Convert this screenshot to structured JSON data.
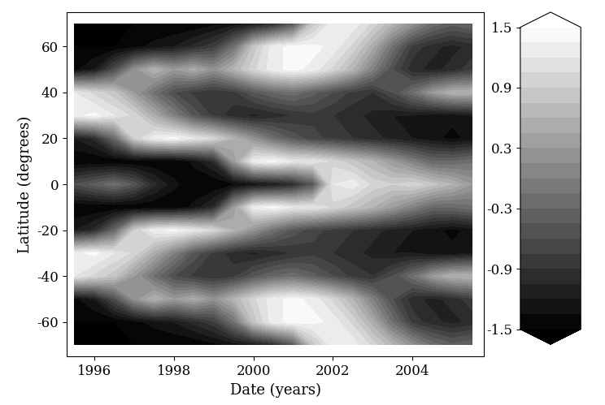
{
  "chart_data": {
    "type": "heatmap",
    "xlabel": "Date (years)",
    "ylabel": "Latitude (degrees)",
    "x": [
      1995.5,
      1996.0,
      1996.5,
      1997.0,
      1997.5,
      1998.0,
      1998.5,
      1999.0,
      1999.5,
      2000.0,
      2000.5,
      2001.0,
      2001.5,
      2002.0,
      2002.5,
      2003.0,
      2003.5,
      2004.0,
      2004.5,
      2005.0,
      2005.5
    ],
    "y": [
      -70,
      -60,
      -50,
      -40,
      -30,
      -20,
      -10,
      0,
      10,
      20,
      30,
      40,
      50,
      60,
      70
    ],
    "cells": [
      [
        -1.5,
        -1.5,
        -1.5,
        -1.5,
        -1.5,
        -1.5,
        -1.5,
        -1.4,
        -1.3,
        -1.2,
        -1.0,
        -0.5,
        0.8,
        1.3,
        1.3,
        1.0,
        0.6,
        0.2,
        -0.2,
        -0.4,
        -0.3
      ],
      [
        -1.5,
        -1.5,
        -1.5,
        -1.4,
        -1.3,
        -1.2,
        -1.0,
        -0.8,
        -0.2,
        0.8,
        1.3,
        1.4,
        1.4,
        1.3,
        1.0,
        0.5,
        -0.2,
        -0.8,
        -1.0,
        -1.1,
        -1.0
      ],
      [
        -1.4,
        -1.2,
        -0.6,
        0.2,
        0.6,
        0.3,
        0.5,
        0.2,
        0.6,
        1.0,
        1.3,
        1.4,
        1.3,
        1.0,
        0.6,
        0.0,
        -0.6,
        -1.0,
        -1.1,
        -1.0,
        -0.8
      ],
      [
        1.2,
        1.0,
        0.8,
        0.3,
        -0.2,
        -0.6,
        -0.8,
        -0.9,
        -0.8,
        -0.5,
        -0.3,
        -0.2,
        -0.4,
        -0.6,
        -0.8,
        -0.9,
        -0.6,
        -0.2,
        0.3,
        0.6,
        0.6
      ],
      [
        1.3,
        1.4,
        1.2,
        1.0,
        0.5,
        0.0,
        -0.5,
        -0.8,
        -1.0,
        -1.1,
        -1.0,
        -0.9,
        -0.8,
        -0.9,
        -1.0,
        -1.1,
        -1.2,
        -1.2,
        -1.3,
        -1.3,
        -1.2
      ],
      [
        -1.2,
        -1.0,
        -0.3,
        0.9,
        1.3,
        1.4,
        1.2,
        1.0,
        0.6,
        0.2,
        -0.2,
        -0.5,
        -0.7,
        -0.8,
        -0.9,
        -1.0,
        -1.1,
        -1.2,
        -1.3,
        -1.4,
        -1.3
      ],
      [
        -1.5,
        -1.5,
        -1.5,
        -1.5,
        -1.5,
        -1.5,
        -1.3,
        -1.0,
        0.3,
        1.3,
        1.4,
        1.2,
        1.2,
        1.0,
        0.8,
        0.6,
        0.3,
        0.0,
        -0.3,
        -0.3,
        -0.2
      ],
      [
        -0.6,
        -0.4,
        -0.2,
        -0.5,
        -1.0,
        -1.3,
        -1.5,
        -1.5,
        -1.4,
        -1.3,
        -1.2,
        -1.0,
        -0.5,
        1.2,
        1.3,
        1.0,
        0.9,
        1.0,
        0.8,
        0.6,
        0.3
      ],
      [
        -1.5,
        -1.5,
        -1.5,
        -1.5,
        -1.5,
        -1.5,
        -1.3,
        -1.0,
        0.3,
        1.3,
        1.4,
        1.2,
        1.2,
        1.0,
        0.8,
        0.6,
        0.3,
        0.0,
        -0.3,
        -0.3,
        -0.2
      ],
      [
        -1.2,
        -1.0,
        -0.3,
        0.9,
        1.3,
        1.4,
        1.2,
        1.0,
        0.6,
        0.2,
        -0.2,
        -0.5,
        -0.7,
        -0.8,
        -0.9,
        -1.0,
        -1.1,
        -1.2,
        -1.3,
        -1.4,
        -1.3
      ],
      [
        1.3,
        1.4,
        1.2,
        1.0,
        0.5,
        0.0,
        -0.5,
        -0.8,
        -1.0,
        -1.1,
        -1.0,
        -0.9,
        -0.8,
        -0.9,
        -1.0,
        -1.1,
        -1.2,
        -1.2,
        -1.3,
        -1.3,
        -1.2
      ],
      [
        1.2,
        1.0,
        0.8,
        0.3,
        -0.2,
        -0.6,
        -0.8,
        -0.9,
        -0.8,
        -0.5,
        -0.3,
        -0.2,
        -0.4,
        -0.6,
        -0.8,
        -0.9,
        -0.6,
        -0.2,
        0.3,
        0.6,
        0.6
      ],
      [
        -1.4,
        -1.2,
        -0.6,
        0.2,
        0.6,
        0.3,
        0.5,
        0.2,
        0.6,
        1.0,
        1.3,
        1.4,
        1.3,
        1.0,
        0.6,
        0.0,
        -0.6,
        -1.0,
        -1.1,
        -1.0,
        -0.8
      ],
      [
        -1.5,
        -1.5,
        -1.5,
        -1.4,
        -1.3,
        -1.2,
        -1.0,
        -0.8,
        -0.2,
        0.8,
        1.3,
        1.4,
        1.4,
        1.3,
        1.0,
        0.5,
        -0.2,
        -0.8,
        -1.0,
        -1.1,
        -1.0
      ],
      [
        -1.5,
        -1.5,
        -1.5,
        -1.5,
        -1.5,
        -1.5,
        -1.5,
        -1.4,
        -1.3,
        -1.2,
        -1.0,
        -0.5,
        0.8,
        1.3,
        1.3,
        1.0,
        0.6,
        0.2,
        -0.2,
        -0.4,
        -0.3
      ]
    ],
    "xlim": [
      1995.3,
      2005.8
    ],
    "xticks": [
      1996,
      1998,
      2000,
      2002,
      2004
    ],
    "ylim": [
      -75,
      75
    ],
    "yticks": [
      -60,
      -40,
      -20,
      0,
      20,
      40,
      60
    ],
    "colorbar_range": [
      -1.5,
      1.5
    ],
    "colorbar_ticks": [
      -1.5,
      -0.9,
      -0.3,
      0.3,
      0.9,
      1.5
    ]
  }
}
